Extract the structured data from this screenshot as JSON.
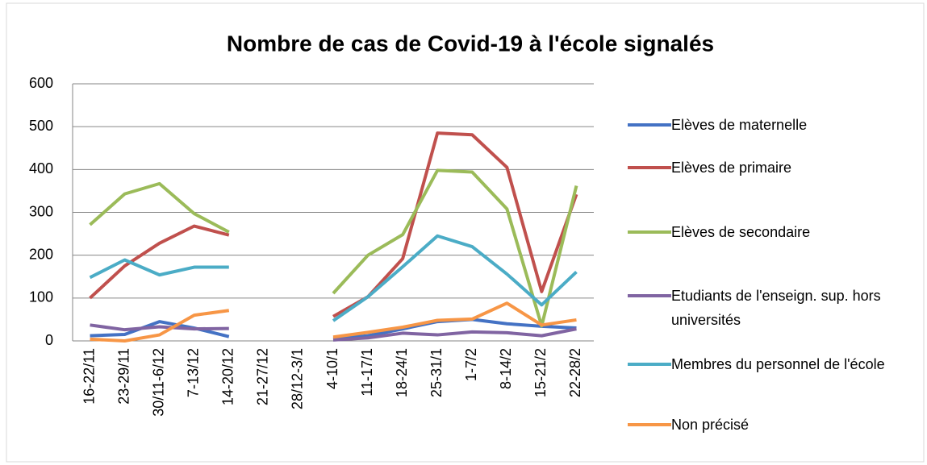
{
  "chart_data": {
    "type": "line",
    "title": "Nombre de cas de Covid-19 à l'école signalés",
    "categories": [
      "16-22/11",
      "23-29/11",
      "30/11-6/12",
      "7-13/12",
      "14-20/12",
      "21-27/12",
      "28/12-3/1",
      "4-10/1",
      "11-17/1",
      "18-24/1",
      "25-31/1",
      "1-7/2",
      "8-14/2",
      "15-21/2",
      "22-28/2"
    ],
    "series": [
      {
        "name": "Elèves de maternelle",
        "color": "#4472c4",
        "values": [
          12,
          15,
          45,
          30,
          10,
          null,
          null,
          5,
          12,
          28,
          45,
          50,
          40,
          34,
          30
        ]
      },
      {
        "name": "Elèves de primaire",
        "color": "#c0504d",
        "values": [
          100,
          175,
          228,
          268,
          247,
          null,
          null,
          57,
          103,
          192,
          485,
          481,
          405,
          115,
          342
        ]
      },
      {
        "name": "Elèves de secondaire",
        "color": "#9bbb59",
        "values": [
          271,
          343,
          367,
          297,
          254,
          null,
          null,
          111,
          200,
          248,
          398,
          394,
          308,
          35,
          362
        ]
      },
      {
        "name": "Etudiants de l'enseign. sup. hors universités",
        "color": "#8064a2",
        "values": [
          37,
          26,
          33,
          28,
          29,
          null,
          null,
          2,
          7,
          18,
          14,
          21,
          19,
          12,
          28
        ]
      },
      {
        "name": "Membres du personnel de l'école",
        "color": "#4bacc6",
        "values": [
          148,
          189,
          154,
          172,
          172,
          null,
          null,
          47,
          103,
          173,
          245,
          220,
          156,
          84,
          161
        ]
      },
      {
        "name": "Non précisé",
        "color": "#f79646",
        "values": [
          4,
          0,
          14,
          60,
          71,
          null,
          null,
          9,
          20,
          32,
          48,
          51,
          88,
          37,
          49
        ]
      }
    ],
    "ylim": [
      0,
      600
    ],
    "yticks": [
      0,
      100,
      200,
      300,
      400,
      500,
      600
    ],
    "grid": true,
    "legend": "right"
  }
}
